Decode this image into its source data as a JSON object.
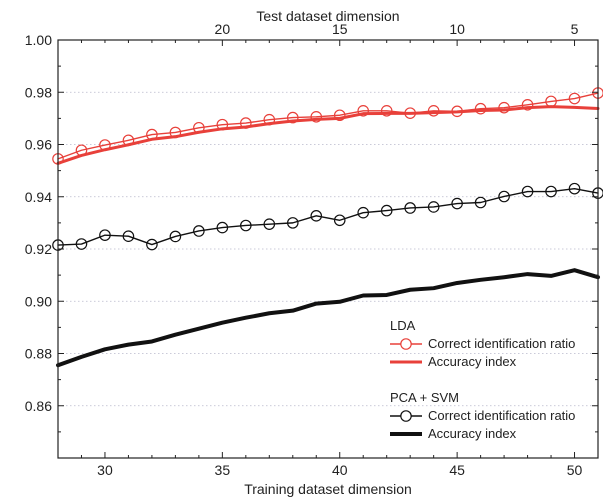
{
  "chart_data": {
    "type": "line",
    "xlabel": "Training dataset dimension",
    "x2label": "Test dataset dimension",
    "xlim": [
      28,
      51
    ],
    "ylim": [
      0.84,
      1.0
    ],
    "x_ticks": [
      30,
      35,
      40,
      45,
      50
    ],
    "x_tick_labels": [
      "30",
      "35",
      "40",
      "45",
      "50"
    ],
    "x2_ticks": [
      20,
      15,
      10,
      5
    ],
    "x2_tick_labels": [
      "20",
      "15",
      "10",
      "5"
    ],
    "x2_relation": "test = 55 - training",
    "y_ticks": [
      0.86,
      0.88,
      0.9,
      0.92,
      0.94,
      0.96,
      0.98,
      1.0
    ],
    "y_tick_labels": [
      "0.86",
      "0.88",
      "0.90",
      "0.92",
      "0.94",
      "0.96",
      "0.98",
      "1.00"
    ],
    "grid": "horizontal dotted",
    "reference_line_y": 1.0,
    "legend_placement": "bottom-right",
    "x": [
      28,
      29,
      30,
      31,
      32,
      33,
      34,
      35,
      36,
      37,
      38,
      39,
      40,
      41,
      42,
      43,
      44,
      45,
      46,
      47,
      48,
      49,
      50,
      51
    ],
    "groups": [
      {
        "title": "LDA",
        "color": "#e8403a",
        "series": [
          {
            "name": "Correct identification ratio",
            "style": "line-markers",
            "values": [
              0.9545,
              0.9578,
              0.9598,
              0.9616,
              0.9638,
              0.9646,
              0.9664,
              0.9676,
              0.9682,
              0.9695,
              0.9703,
              0.9706,
              0.9712,
              0.9729,
              0.9729,
              0.972,
              0.9729,
              0.9727,
              0.9737,
              0.9741,
              0.9752,
              0.9765,
              0.9776,
              0.9797
            ]
          },
          {
            "name": "Accuracy index",
            "style": "line",
            "values": [
              0.9528,
              0.9558,
              0.958,
              0.9599,
              0.962,
              0.963,
              0.9647,
              0.966,
              0.9667,
              0.968,
              0.969,
              0.9696,
              0.97,
              0.9718,
              0.9719,
              0.9719,
              0.9722,
              0.9725,
              0.973,
              0.9732,
              0.9741,
              0.9745,
              0.9742,
              0.9738
            ]
          }
        ]
      },
      {
        "title": "PCA + SVM",
        "color": "#111111",
        "series": [
          {
            "name": "Correct identification ratio",
            "style": "line-markers",
            "values": [
              0.9215,
              0.9219,
              0.9253,
              0.9249,
              0.9217,
              0.9248,
              0.9269,
              0.9282,
              0.929,
              0.9295,
              0.93,
              0.9327,
              0.931,
              0.9339,
              0.9347,
              0.9357,
              0.9361,
              0.9374,
              0.9378,
              0.9401,
              0.942,
              0.942,
              0.9431,
              0.9414
            ]
          },
          {
            "name": "Accuracy index",
            "style": "line-thick",
            "values": [
              0.8755,
              0.8787,
              0.8816,
              0.8834,
              0.8846,
              0.8872,
              0.8895,
              0.8918,
              0.8937,
              0.8954,
              0.8964,
              0.8991,
              0.8998,
              0.9022,
              0.9024,
              0.9044,
              0.905,
              0.907,
              0.9082,
              0.9092,
              0.9104,
              0.9097,
              0.9119,
              0.9092
            ]
          }
        ]
      }
    ]
  }
}
